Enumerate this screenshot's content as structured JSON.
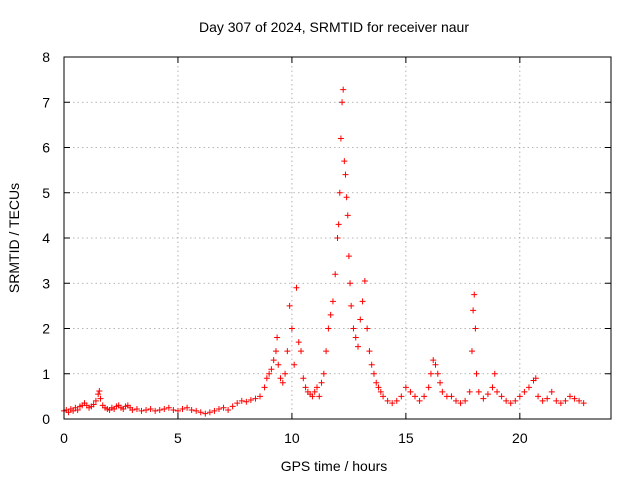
{
  "chart_data": {
    "type": "scatter",
    "title": "Day 307 of 2024, SRMTID for receiver naur",
    "xlabel": "GPS time / hours",
    "ylabel": "SRMTID / TECUs",
    "xlim": [
      0,
      24
    ],
    "ylim": [
      0,
      8
    ],
    "x_ticks": [
      0,
      5,
      10,
      15,
      20
    ],
    "x_tick_labels": [
      "0",
      "5",
      "10",
      "15",
      "20"
    ],
    "y_ticks": [
      0,
      1,
      2,
      3,
      4,
      5,
      6,
      7,
      8
    ],
    "y_tick_labels": [
      "0",
      "1",
      "2",
      "3",
      "4",
      "5",
      "6",
      "7",
      "8"
    ],
    "grid": true,
    "marker": "+",
    "series": [
      {
        "name": "SRMTID",
        "color": "#ff0000",
        "points": [
          [
            0.0,
            0.18
          ],
          [
            0.1,
            0.2
          ],
          [
            0.2,
            0.15
          ],
          [
            0.3,
            0.22
          ],
          [
            0.4,
            0.18
          ],
          [
            0.5,
            0.25
          ],
          [
            0.6,
            0.2
          ],
          [
            0.7,
            0.28
          ],
          [
            0.8,
            0.3
          ],
          [
            0.9,
            0.35
          ],
          [
            1.0,
            0.3
          ],
          [
            1.1,
            0.25
          ],
          [
            1.2,
            0.28
          ],
          [
            1.3,
            0.32
          ],
          [
            1.4,
            0.4
          ],
          [
            1.5,
            0.55
          ],
          [
            1.55,
            0.62
          ],
          [
            1.6,
            0.45
          ],
          [
            1.7,
            0.3
          ],
          [
            1.8,
            0.25
          ],
          [
            1.9,
            0.22
          ],
          [
            2.0,
            0.2
          ],
          [
            2.1,
            0.25
          ],
          [
            2.2,
            0.22
          ],
          [
            2.3,
            0.28
          ],
          [
            2.4,
            0.3
          ],
          [
            2.5,
            0.25
          ],
          [
            2.6,
            0.22
          ],
          [
            2.7,
            0.28
          ],
          [
            2.8,
            0.3
          ],
          [
            2.9,
            0.25
          ],
          [
            3.0,
            0.2
          ],
          [
            3.2,
            0.22
          ],
          [
            3.4,
            0.18
          ],
          [
            3.6,
            0.2
          ],
          [
            3.8,
            0.22
          ],
          [
            4.0,
            0.18
          ],
          [
            4.2,
            0.2
          ],
          [
            4.4,
            0.22
          ],
          [
            4.6,
            0.25
          ],
          [
            4.8,
            0.2
          ],
          [
            5.0,
            0.18
          ],
          [
            5.2,
            0.22
          ],
          [
            5.4,
            0.25
          ],
          [
            5.6,
            0.2
          ],
          [
            5.8,
            0.18
          ],
          [
            6.0,
            0.15
          ],
          [
            6.2,
            0.12
          ],
          [
            6.4,
            0.15
          ],
          [
            6.6,
            0.18
          ],
          [
            6.8,
            0.22
          ],
          [
            7.0,
            0.25
          ],
          [
            7.2,
            0.2
          ],
          [
            7.4,
            0.28
          ],
          [
            7.6,
            0.35
          ],
          [
            7.8,
            0.4
          ],
          [
            8.0,
            0.38
          ],
          [
            8.2,
            0.42
          ],
          [
            8.4,
            0.45
          ],
          [
            8.6,
            0.5
          ],
          [
            8.8,
            0.7
          ],
          [
            8.9,
            0.9
          ],
          [
            9.0,
            1.0
          ],
          [
            9.1,
            1.1
          ],
          [
            9.2,
            1.3
          ],
          [
            9.3,
            1.5
          ],
          [
            9.35,
            1.8
          ],
          [
            9.4,
            1.2
          ],
          [
            9.5,
            0.9
          ],
          [
            9.6,
            0.8
          ],
          [
            9.7,
            1.0
          ],
          [
            9.8,
            1.5
          ],
          [
            9.9,
            2.5
          ],
          [
            10.0,
            2.0
          ],
          [
            10.1,
            1.2
          ],
          [
            10.2,
            2.9
          ],
          [
            10.3,
            1.7
          ],
          [
            10.4,
            1.5
          ],
          [
            10.5,
            0.9
          ],
          [
            10.6,
            0.7
          ],
          [
            10.7,
            0.6
          ],
          [
            10.8,
            0.55
          ],
          [
            10.9,
            0.5
          ],
          [
            11.0,
            0.6
          ],
          [
            11.1,
            0.7
          ],
          [
            11.2,
            0.5
          ],
          [
            11.3,
            0.8
          ],
          [
            11.4,
            1.0
          ],
          [
            11.5,
            1.5
          ],
          [
            11.6,
            2.0
          ],
          [
            11.7,
            2.3
          ],
          [
            11.8,
            2.6
          ],
          [
            11.9,
            3.2
          ],
          [
            12.0,
            4.0
          ],
          [
            12.05,
            4.3
          ],
          [
            12.1,
            5.0
          ],
          [
            12.15,
            6.2
          ],
          [
            12.2,
            7.0
          ],
          [
            12.25,
            7.28
          ],
          [
            12.3,
            5.7
          ],
          [
            12.35,
            5.4
          ],
          [
            12.4,
            4.9
          ],
          [
            12.45,
            4.5
          ],
          [
            12.5,
            3.6
          ],
          [
            12.55,
            3.0
          ],
          [
            12.6,
            2.5
          ],
          [
            12.7,
            2.0
          ],
          [
            12.8,
            1.8
          ],
          [
            12.9,
            1.6
          ],
          [
            13.0,
            2.2
          ],
          [
            13.1,
            2.6
          ],
          [
            13.2,
            3.05
          ],
          [
            13.3,
            2.0
          ],
          [
            13.4,
            1.5
          ],
          [
            13.5,
            1.2
          ],
          [
            13.6,
            1.0
          ],
          [
            13.7,
            0.8
          ],
          [
            13.8,
            0.7
          ],
          [
            13.9,
            0.6
          ],
          [
            14.0,
            0.5
          ],
          [
            14.2,
            0.4
          ],
          [
            14.4,
            0.35
          ],
          [
            14.6,
            0.4
          ],
          [
            14.8,
            0.5
          ],
          [
            15.0,
            0.7
          ],
          [
            15.2,
            0.6
          ],
          [
            15.4,
            0.5
          ],
          [
            15.6,
            0.4
          ],
          [
            15.8,
            0.5
          ],
          [
            16.0,
            0.7
          ],
          [
            16.1,
            1.0
          ],
          [
            16.2,
            1.3
          ],
          [
            16.3,
            1.2
          ],
          [
            16.4,
            1.0
          ],
          [
            16.5,
            0.8
          ],
          [
            16.6,
            0.6
          ],
          [
            16.8,
            0.5
          ],
          [
            17.0,
            0.5
          ],
          [
            17.2,
            0.4
          ],
          [
            17.4,
            0.35
          ],
          [
            17.6,
            0.4
          ],
          [
            17.8,
            0.6
          ],
          [
            17.9,
            1.5
          ],
          [
            17.95,
            2.4
          ],
          [
            18.0,
            2.75
          ],
          [
            18.05,
            2.0
          ],
          [
            18.1,
            1.0
          ],
          [
            18.2,
            0.6
          ],
          [
            18.4,
            0.45
          ],
          [
            18.6,
            0.55
          ],
          [
            18.8,
            0.7
          ],
          [
            18.9,
            1.0
          ],
          [
            19.0,
            0.6
          ],
          [
            19.2,
            0.5
          ],
          [
            19.4,
            0.4
          ],
          [
            19.6,
            0.35
          ],
          [
            19.8,
            0.4
          ],
          [
            20.0,
            0.5
          ],
          [
            20.2,
            0.6
          ],
          [
            20.4,
            0.7
          ],
          [
            20.6,
            0.85
          ],
          [
            20.7,
            0.9
          ],
          [
            20.8,
            0.5
          ],
          [
            21.0,
            0.4
          ],
          [
            21.2,
            0.45
          ],
          [
            21.4,
            0.6
          ],
          [
            21.6,
            0.4
          ],
          [
            21.8,
            0.35
          ],
          [
            22.0,
            0.4
          ],
          [
            22.2,
            0.5
          ],
          [
            22.4,
            0.45
          ],
          [
            22.6,
            0.4
          ],
          [
            22.8,
            0.35
          ]
        ]
      }
    ]
  }
}
